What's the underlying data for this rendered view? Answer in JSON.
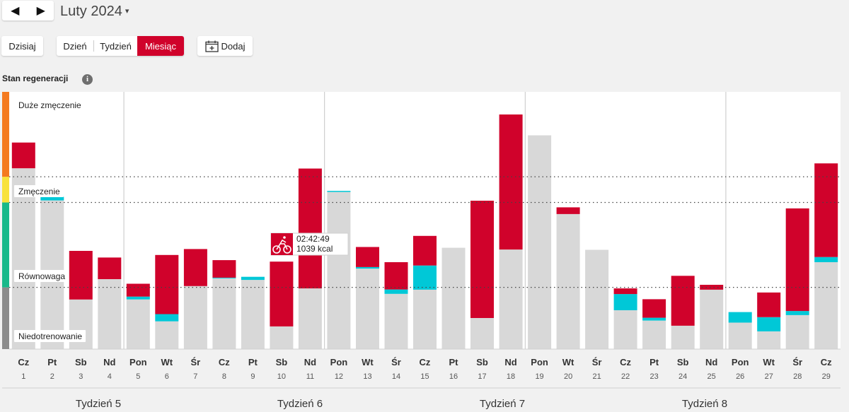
{
  "nav": {
    "prev_icon": "◀",
    "next_icon": "▶",
    "month_label": "Luty 2024",
    "month_caret": "▾"
  },
  "toolbar": {
    "today_label": "Dzisiaj",
    "day_label": "Dzień",
    "week_label": "Tydzień",
    "month_label": "Miesiąc",
    "add_label": "Dodaj",
    "active_view": "Miesiąc"
  },
  "section": {
    "title": "Stan regeneracji",
    "info_icon": "i"
  },
  "colors": {
    "training": "#d0022b",
    "cyan": "#00c8d7",
    "base": "#d8d8d8",
    "zone_high": "#f47a20",
    "zone_mid": "#f8e23c",
    "zone_low": "#19b98a",
    "zone_under": "#8c8c8c"
  },
  "tooltip": {
    "duration": "02:42:49",
    "calories": "1039 kcal",
    "icon": "bike-icon"
  },
  "chart_data": {
    "type": "bar",
    "stacked": true,
    "zones": [
      "Duże zmęczenie",
      "Zmęczenie",
      "Równowaga",
      "Niedotrenowanie"
    ],
    "ylim": [
      0,
      100
    ],
    "zone_boundaries": [
      24,
      57,
      67,
      100
    ],
    "categories": [
      "Cz",
      "Pt",
      "Sb",
      "Nd",
      "Pon",
      "Wt",
      "Śr",
      "Cz",
      "Pt",
      "Sb",
      "Nd",
      "Pon",
      "Wt",
      "Śr",
      "Cz",
      "Pt",
      "Sb",
      "Nd",
      "Pon",
      "Wt",
      "Śr",
      "Cz",
      "Pt",
      "Sb",
      "Nd",
      "Pon",
      "Wt",
      "Śr",
      "Cz"
    ],
    "dates": [
      "1",
      "2",
      "3",
      "4",
      "5",
      "6",
      "7",
      "8",
      "9",
      "10",
      "11",
      "12",
      "13",
      "14",
      "15",
      "16",
      "17",
      "18",
      "19",
      "20",
      "21",
      "22",
      "23",
      "24",
      "25",
      "26",
      "27",
      "28",
      "29"
    ],
    "weeks": [
      "Tydzień 5",
      "Tydzień 6",
      "Tydzień 7",
      "Tydzień 8"
    ],
    "series": [
      {
        "role": "base",
        "values": [
          70.3,
          57.8,
          19.3,
          27.2,
          19.3,
          10.8,
          24.5,
          27.5,
          26.9,
          8.8,
          23.6,
          61.1,
          31.3,
          21.5,
          23.1,
          39.4,
          12.1,
          38.7,
          83.1,
          52.5,
          38.6,
          15.1,
          11.1,
          9.1,
          23.1,
          10.3,
          6.9,
          13.2,
          33.8
        ]
      },
      {
        "role": "recovery",
        "values": [
          0,
          1.4,
          0,
          0,
          1.1,
          2.8,
          0,
          0.3,
          1.2,
          0,
          0,
          0.4,
          0.6,
          1.7,
          9.4,
          0,
          0,
          0,
          0,
          0,
          0,
          6.3,
          1.1,
          0,
          0,
          4.1,
          5.5,
          1.6,
          2.0
        ]
      },
      {
        "role": "training",
        "values": [
          10.0,
          0,
          18.9,
          8.4,
          5.0,
          23.0,
          14.4,
          6.8,
          0,
          25.2,
          46.6,
          0,
          7.8,
          10.6,
          11.5,
          0,
          45.6,
          52.5,
          0,
          2.6,
          0,
          2.2,
          7.2,
          19.4,
          1.9,
          0,
          9.6,
          39.9,
          36.4
        ]
      }
    ]
  }
}
